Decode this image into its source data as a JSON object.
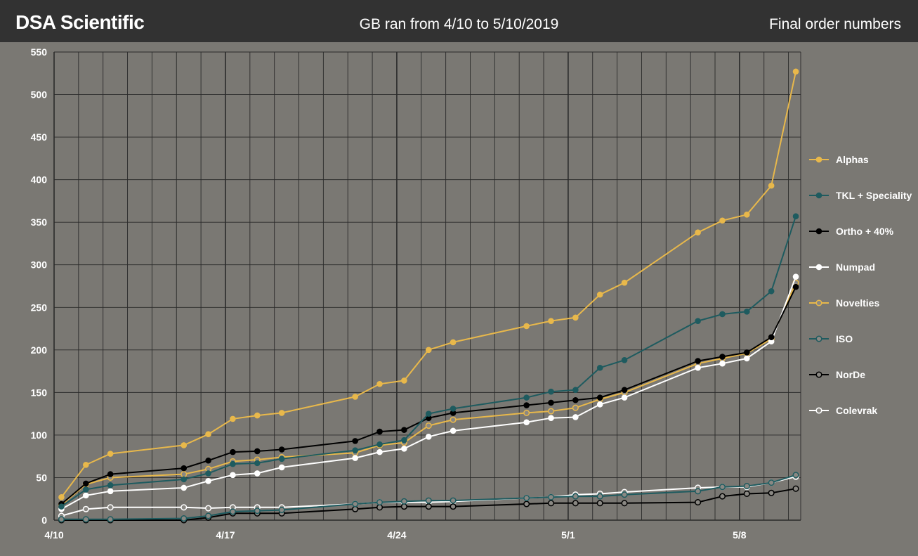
{
  "header": {
    "brand": "DSA Scientific",
    "subtitle": "GB ran from 4/10 to 5/10/2019",
    "right_label": "Final order numbers"
  },
  "chart_data": {
    "type": "line",
    "title": "GB ran from 4/10 to 5/10/2019",
    "xlabel": "",
    "ylabel": "",
    "ylim": [
      0,
      550
    ],
    "y_ticks": [
      0,
      50,
      100,
      150,
      200,
      250,
      300,
      350,
      400,
      450,
      500,
      550
    ],
    "x_day_range": [
      0,
      30.5
    ],
    "x_ticks": [
      {
        "label": "4/10",
        "day": 0
      },
      {
        "label": "4/17",
        "day": 7
      },
      {
        "label": "4/24",
        "day": 14
      },
      {
        "label": "5/1",
        "day": 21
      },
      {
        "label": "5/8",
        "day": 28
      }
    ],
    "grid": true,
    "legend_position": "right",
    "series": [
      {
        "name": "Alphas",
        "color": "#e8b84b",
        "marker": "filled",
        "points": [
          [
            0.3,
            27
          ],
          [
            1.3,
            65
          ],
          [
            2.3,
            78
          ],
          [
            5.3,
            88
          ],
          [
            6.3,
            101
          ],
          [
            7.3,
            119
          ],
          [
            8.3,
            123
          ],
          [
            9.3,
            126
          ],
          [
            12.3,
            145
          ],
          [
            13.3,
            160
          ],
          [
            14.3,
            164
          ],
          [
            15.3,
            200
          ],
          [
            16.3,
            209
          ],
          [
            19.3,
            228
          ],
          [
            20.3,
            234
          ],
          [
            21.3,
            238
          ],
          [
            22.3,
            265
          ],
          [
            23.3,
            279
          ],
          [
            26.3,
            338
          ],
          [
            27.3,
            352
          ],
          [
            28.3,
            359
          ],
          [
            29.3,
            393
          ],
          [
            30.3,
            527
          ]
        ]
      },
      {
        "name": "TKL + Speciality",
        "color": "#1e5b5f",
        "marker": "filled",
        "points": [
          [
            0.3,
            16
          ],
          [
            1.3,
            36
          ],
          [
            2.3,
            41
          ],
          [
            5.3,
            48
          ],
          [
            6.3,
            55
          ],
          [
            7.3,
            66
          ],
          [
            8.3,
            67
          ],
          [
            9.3,
            72
          ],
          [
            12.3,
            82
          ],
          [
            13.3,
            89
          ],
          [
            14.3,
            94
          ],
          [
            15.3,
            125
          ],
          [
            16.3,
            131
          ],
          [
            19.3,
            144
          ],
          [
            20.3,
            151
          ],
          [
            21.3,
            153
          ],
          [
            22.3,
            179
          ],
          [
            23.3,
            188
          ],
          [
            26.3,
            234
          ],
          [
            27.3,
            242
          ],
          [
            28.3,
            245
          ],
          [
            29.3,
            269
          ],
          [
            30.3,
            357
          ]
        ]
      },
      {
        "name": "Ortho + 40%",
        "color": "#000000",
        "marker": "filled",
        "points": [
          [
            0.3,
            19
          ],
          [
            1.3,
            43
          ],
          [
            2.3,
            54
          ],
          [
            5.3,
            61
          ],
          [
            6.3,
            70
          ],
          [
            7.3,
            80
          ],
          [
            8.3,
            81
          ],
          [
            9.3,
            83
          ],
          [
            12.3,
            93
          ],
          [
            13.3,
            104
          ],
          [
            14.3,
            106
          ],
          [
            15.3,
            120
          ],
          [
            16.3,
            126
          ],
          [
            19.3,
            135
          ],
          [
            20.3,
            138
          ],
          [
            21.3,
            141
          ],
          [
            22.3,
            144
          ],
          [
            23.3,
            153
          ],
          [
            26.3,
            187
          ],
          [
            27.3,
            192
          ],
          [
            28.3,
            197
          ],
          [
            29.3,
            215
          ],
          [
            30.3,
            274
          ]
        ]
      },
      {
        "name": "Numpad",
        "color": "#ffffff",
        "marker": "filled",
        "points": [
          [
            0.3,
            13
          ],
          [
            1.3,
            29
          ],
          [
            2.3,
            34
          ],
          [
            5.3,
            38
          ],
          [
            6.3,
            46
          ],
          [
            7.3,
            53
          ],
          [
            8.3,
            55
          ],
          [
            9.3,
            62
          ],
          [
            12.3,
            73
          ],
          [
            13.3,
            80
          ],
          [
            14.3,
            84
          ],
          [
            15.3,
            98
          ],
          [
            16.3,
            105
          ],
          [
            19.3,
            115
          ],
          [
            20.3,
            120
          ],
          [
            21.3,
            121
          ],
          [
            22.3,
            136
          ],
          [
            23.3,
            144
          ],
          [
            26.3,
            179
          ],
          [
            27.3,
            184
          ],
          [
            28.3,
            190
          ],
          [
            29.3,
            210
          ],
          [
            30.3,
            286
          ]
        ]
      },
      {
        "name": "Novelties",
        "color": "#e8b84b",
        "marker": "hollow",
        "points": [
          [
            0.3,
            18
          ],
          [
            1.3,
            42
          ],
          [
            2.3,
            50
          ],
          [
            5.3,
            54
          ],
          [
            6.3,
            60
          ],
          [
            7.3,
            69
          ],
          [
            8.3,
            71
          ],
          [
            9.3,
            74
          ],
          [
            12.3,
            79
          ],
          [
            13.3,
            88
          ],
          [
            14.3,
            91
          ],
          [
            15.3,
            111
          ],
          [
            16.3,
            118
          ],
          [
            19.3,
            126
          ],
          [
            20.3,
            128
          ],
          [
            21.3,
            132
          ],
          [
            22.3,
            142
          ],
          [
            23.3,
            150
          ],
          [
            26.3,
            184
          ],
          [
            27.3,
            190
          ],
          [
            28.3,
            196
          ],
          [
            29.3,
            213
          ],
          [
            30.3,
            279
          ]
        ]
      },
      {
        "name": "ISO",
        "color": "#1e5b5f",
        "marker": "hollow",
        "points": [
          [
            0.3,
            1
          ],
          [
            1.3,
            1
          ],
          [
            2.3,
            1
          ],
          [
            5.3,
            2
          ],
          [
            6.3,
            5
          ],
          [
            7.3,
            10
          ],
          [
            8.3,
            11
          ],
          [
            9.3,
            12
          ],
          [
            12.3,
            19
          ],
          [
            13.3,
            21
          ],
          [
            14.3,
            22
          ],
          [
            15.3,
            23
          ],
          [
            16.3,
            23
          ],
          [
            19.3,
            26
          ],
          [
            20.3,
            27
          ],
          [
            21.3,
            28
          ],
          [
            22.3,
            28
          ],
          [
            23.3,
            30
          ],
          [
            26.3,
            34
          ],
          [
            27.3,
            39
          ],
          [
            28.3,
            40
          ],
          [
            29.3,
            44
          ],
          [
            30.3,
            53
          ]
        ]
      },
      {
        "name": "NorDe",
        "color": "#000000",
        "marker": "hollow",
        "points": [
          [
            0.3,
            0
          ],
          [
            1.3,
            0
          ],
          [
            2.3,
            0
          ],
          [
            5.3,
            0
          ],
          [
            6.3,
            3
          ],
          [
            7.3,
            8
          ],
          [
            8.3,
            8
          ],
          [
            9.3,
            8
          ],
          [
            12.3,
            13
          ],
          [
            13.3,
            15
          ],
          [
            14.3,
            16
          ],
          [
            15.3,
            16
          ],
          [
            16.3,
            16
          ],
          [
            19.3,
            19
          ],
          [
            20.3,
            20
          ],
          [
            21.3,
            20
          ],
          [
            22.3,
            20
          ],
          [
            23.3,
            20
          ],
          [
            26.3,
            21
          ],
          [
            27.3,
            28
          ],
          [
            28.3,
            31
          ],
          [
            29.3,
            32
          ],
          [
            30.3,
            37
          ]
        ]
      },
      {
        "name": "Colevrak",
        "color": "#ffffff",
        "marker": "hollow",
        "points": [
          [
            0.3,
            5
          ],
          [
            1.3,
            13
          ],
          [
            2.3,
            15
          ],
          [
            5.3,
            15
          ],
          [
            6.3,
            14
          ],
          [
            7.3,
            15
          ],
          [
            8.3,
            15
          ],
          [
            9.3,
            15
          ],
          [
            12.3,
            19
          ],
          [
            13.3,
            21
          ],
          [
            14.3,
            21
          ],
          [
            15.3,
            21
          ],
          [
            16.3,
            22
          ],
          [
            19.3,
            26
          ],
          [
            20.3,
            27
          ],
          [
            21.3,
            30
          ],
          [
            22.3,
            31
          ],
          [
            23.3,
            33
          ],
          [
            26.3,
            38
          ],
          [
            27.3,
            39
          ],
          [
            28.3,
            39
          ],
          [
            29.3,
            44
          ],
          [
            30.3,
            51
          ]
        ]
      }
    ]
  }
}
